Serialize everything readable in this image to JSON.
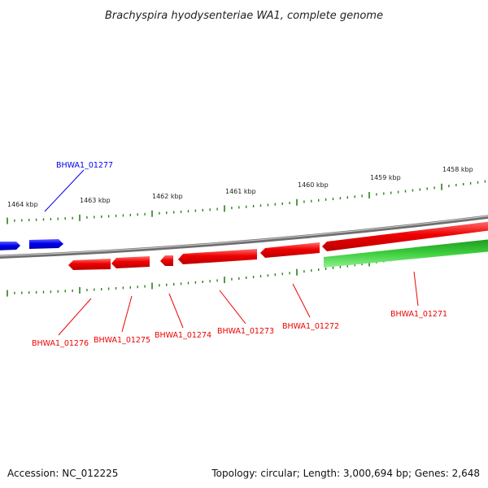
{
  "title": "Brachyspira hyodysenteriae WA1, complete genome",
  "footer": {
    "accession": "Accession: NC_012225",
    "summary": "Topology: circular; Length: 3,000,694 bp; Genes: 2,648"
  },
  "colors": {
    "backbone": "#8a8a8a",
    "forward_gene": "#0000ee",
    "reverse_gene": "#ee0000",
    "rna_gene": "#22bb22",
    "tick": "#2e7d1e"
  },
  "scale_labels": [
    "1464 kbp",
    "1463 kbp",
    "1462 kbp",
    "1461 kbp",
    "1460 kbp",
    "1459 kbp",
    "1458 kbp"
  ],
  "genes": [
    {
      "label": "BHWA1_01277",
      "strand": "forward",
      "color": "#0000ee"
    },
    {
      "label": "BHWA1_01276",
      "strand": "reverse",
      "color": "#ee0000"
    },
    {
      "label": "BHWA1_01275",
      "strand": "reverse",
      "color": "#ee0000"
    },
    {
      "label": "BHWA1_01274",
      "strand": "reverse",
      "color": "#ee0000"
    },
    {
      "label": "BHWA1_01273",
      "strand": "reverse",
      "color": "#ee0000"
    },
    {
      "label": "BHWA1_01272",
      "strand": "reverse",
      "color": "#ee0000"
    },
    {
      "label": "BHWA1_01271",
      "strand": "reverse",
      "color": "#ee0000"
    }
  ]
}
